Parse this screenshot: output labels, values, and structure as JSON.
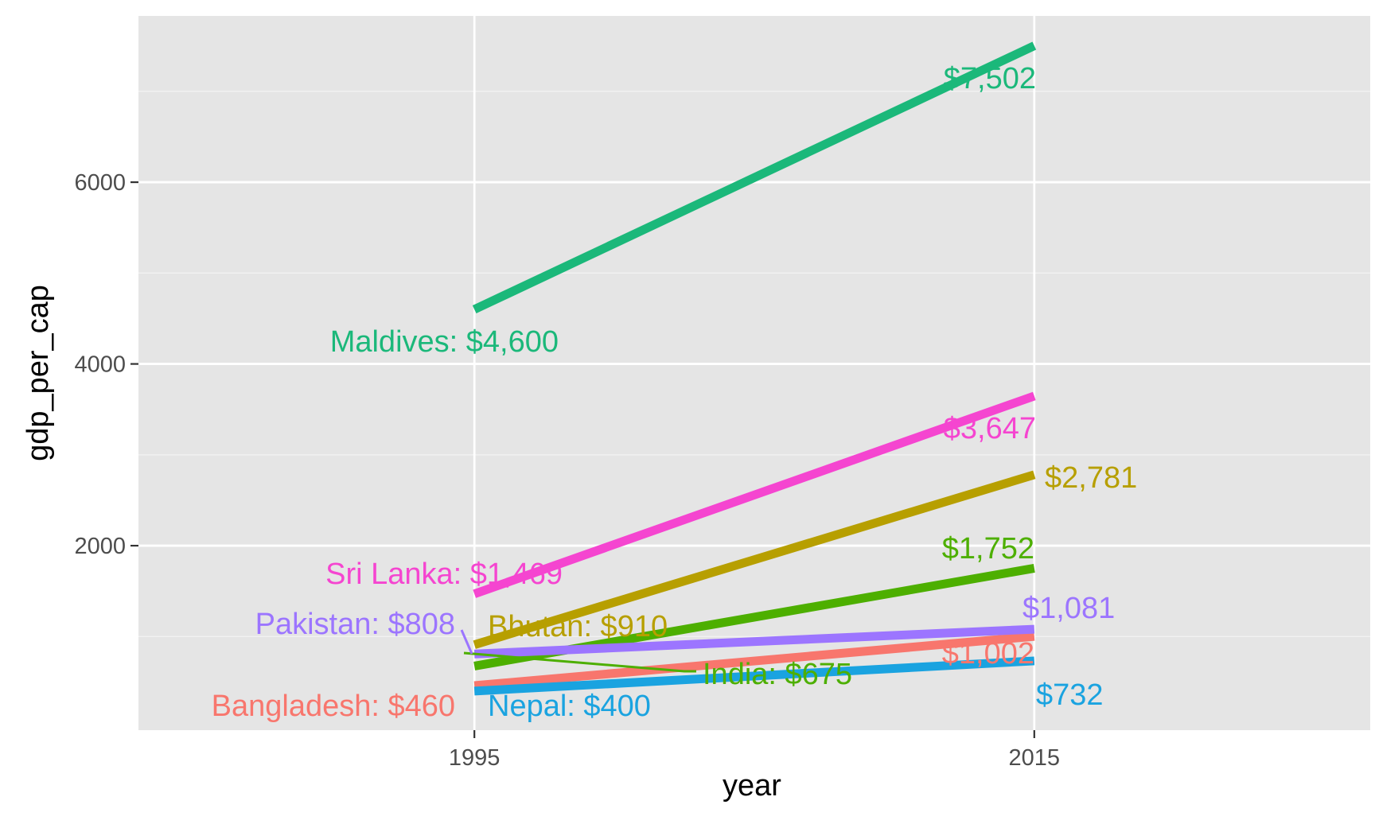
{
  "chart_data": {
    "type": "line",
    "title": "",
    "xlabel": "year",
    "ylabel": "gdp_per_cap",
    "x": [
      1995,
      2015
    ],
    "x_ticks": [
      "1995",
      "2015"
    ],
    "y_ticks": [
      "2000",
      "4000",
      "6000"
    ],
    "xlim": [
      1983,
      2027
    ],
    "ylim": [
      -30,
      7830
    ],
    "grid": true,
    "legend": "none",
    "series": [
      {
        "name": "Bangladesh",
        "values": [
          460,
          1002
        ],
        "color": "#F8766D",
        "labels": [
          "Bangladesh: $460",
          "$1,002"
        ]
      },
      {
        "name": "Bhutan",
        "values": [
          910,
          2781
        ],
        "color": "#B79F00",
        "labels": [
          "Bhutan: $910",
          "$2,781"
        ]
      },
      {
        "name": "India",
        "values": [
          675,
          1752
        ],
        "color": "#4DAF00",
        "labels": [
          "India: $675",
          "$1,752"
        ]
      },
      {
        "name": "Maldives",
        "values": [
          4600,
          7502
        ],
        "color": "#1BB87A",
        "labels": [
          "Maldives: $4,600",
          "$7,502"
        ]
      },
      {
        "name": "Nepal",
        "values": [
          400,
          732
        ],
        "color": "#1AA3E0",
        "labels": [
          "Nepal: $400",
          "$732"
        ]
      },
      {
        "name": "Pakistan",
        "values": [
          808,
          1081
        ],
        "color": "#9C75FF",
        "labels": [
          "Pakistan: $808",
          "$1,081"
        ]
      },
      {
        "name": "Sri Lanka",
        "values": [
          1469,
          3647
        ],
        "color": "#F545D0",
        "labels": [
          "Sri Lanka: $1,469",
          "$3,647"
        ]
      }
    ]
  }
}
